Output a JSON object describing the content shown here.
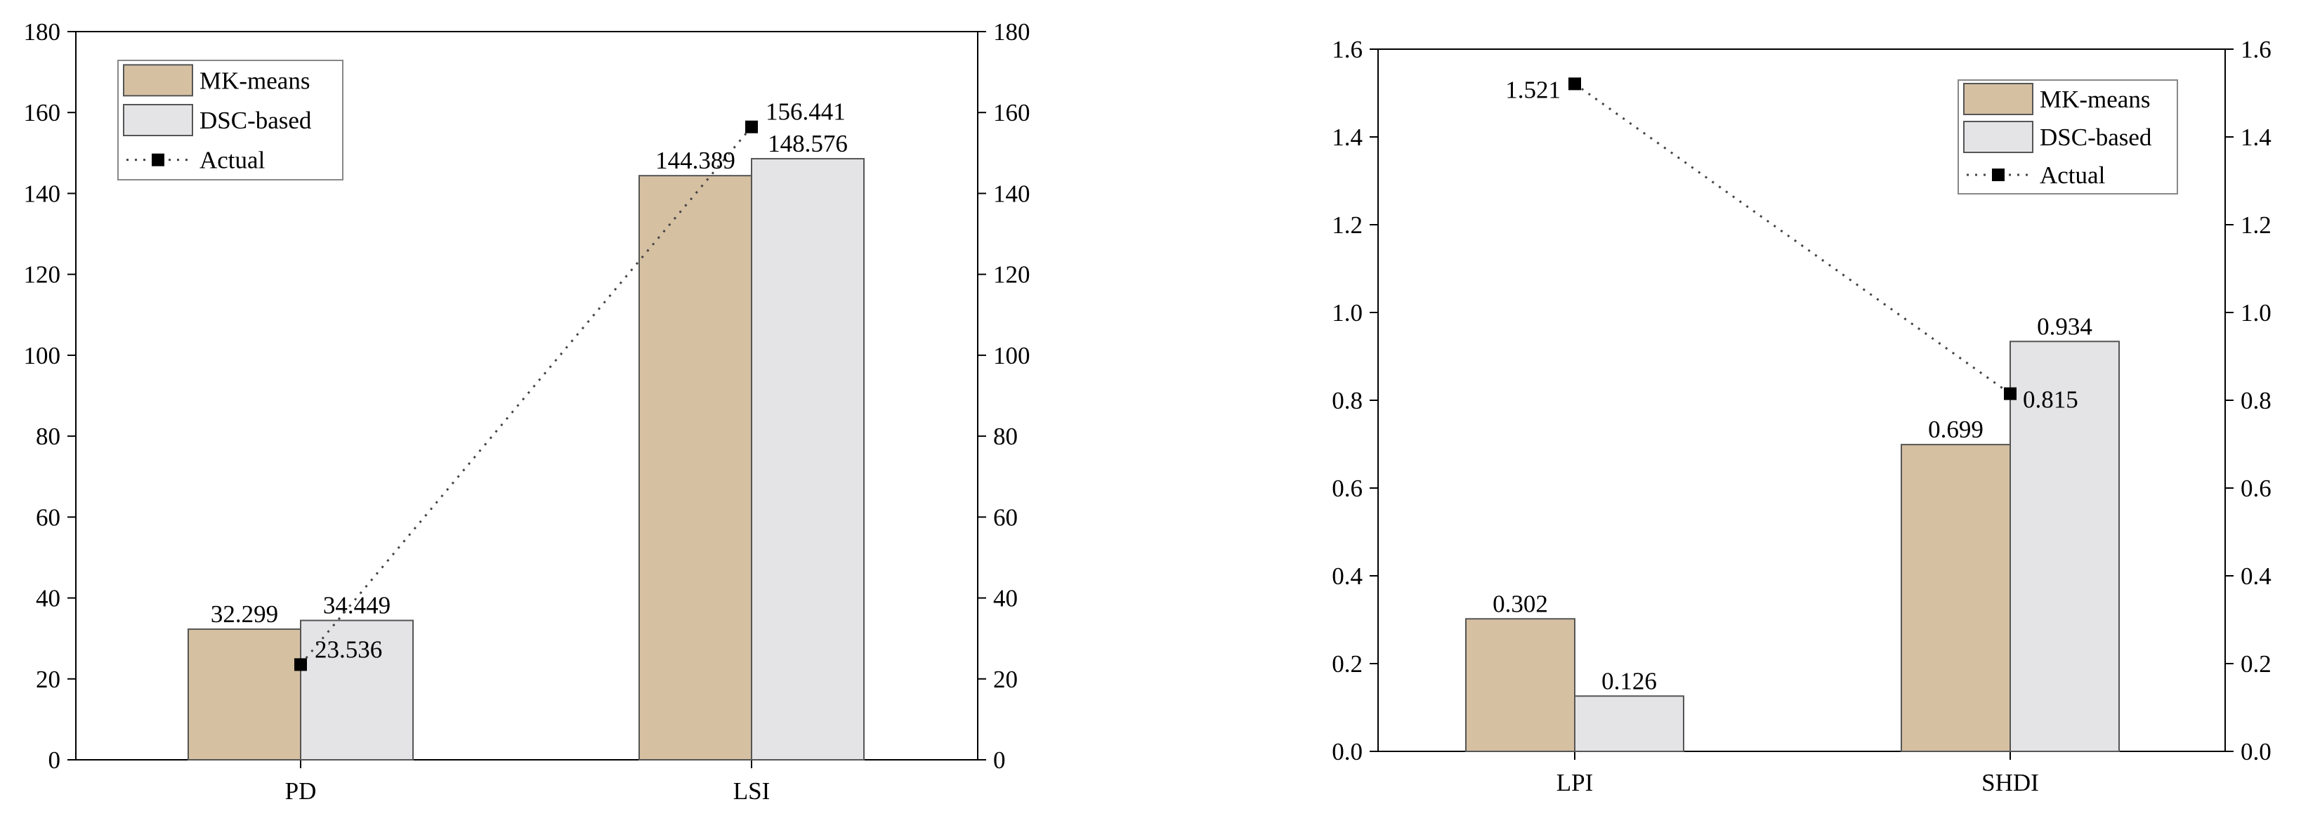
{
  "colors": {
    "mk_means": "#d6c0a2",
    "dsc_based": "#e4e3e5",
    "actual": "#000000",
    "axis": "#000000"
  },
  "chart_data": [
    {
      "type": "bar",
      "categories": [
        "PD",
        "LSI"
      ],
      "ylim": [
        0,
        180
      ],
      "yticks": [
        0,
        20,
        40,
        60,
        80,
        100,
        120,
        140,
        160,
        180
      ],
      "ytick_labels": [
        "0",
        "20",
        "40",
        "60",
        "80",
        "100",
        "120",
        "140",
        "160",
        "180"
      ],
      "y2ticks": [
        0,
        20,
        40,
        60,
        80,
        100,
        120,
        140,
        160,
        180
      ],
      "y2tick_labels": [
        "0",
        "20",
        "40",
        "60",
        "80",
        "100",
        "120",
        "140",
        "160",
        "180"
      ],
      "series": [
        {
          "name": "MK-means",
          "kind": "bar",
          "values": [
            32.299,
            144.389
          ],
          "labels": [
            "32.299",
            "144.389"
          ]
        },
        {
          "name": "DSC-based",
          "kind": "bar",
          "values": [
            34.449,
            148.576
          ],
          "labels": [
            "34.449",
            "148.576"
          ]
        },
        {
          "name": "Actual",
          "kind": "line",
          "values": [
            23.536,
            156.441
          ],
          "labels": [
            "23.536",
            "156.441"
          ]
        }
      ],
      "legend": {
        "position": "top-left",
        "entries": [
          "MK-means",
          "DSC-based",
          "Actual"
        ]
      },
      "grid": false
    },
    {
      "type": "bar",
      "categories": [
        "LPI",
        "SHDI"
      ],
      "ylim": [
        0,
        1.6
      ],
      "yticks": [
        0,
        0.2,
        0.4,
        0.6,
        0.8,
        1.0,
        1.2,
        1.4,
        1.6
      ],
      "ytick_labels": [
        "0.0",
        "0.2",
        "0.4",
        "0.6",
        "0.8",
        "1.0",
        "1.2",
        "1.4",
        "1.6"
      ],
      "y2ticks": [
        0,
        0.2,
        0.4,
        0.6,
        0.8,
        1.0,
        1.2,
        1.4,
        1.6
      ],
      "y2tick_labels": [
        "0.0",
        "0.2",
        "0.4",
        "0.6",
        "0.8",
        "1.0",
        "1.2",
        "1.4",
        "1.6"
      ],
      "series": [
        {
          "name": "MK-means",
          "kind": "bar",
          "values": [
            0.302,
            0.699
          ],
          "labels": [
            "0.302",
            "0.699"
          ]
        },
        {
          "name": "DSC-based",
          "kind": "bar",
          "values": [
            0.126,
            0.934
          ],
          "labels": [
            "0.126",
            "0.934"
          ]
        },
        {
          "name": "Actual",
          "kind": "line",
          "values": [
            1.521,
            0.815
          ],
          "labels": [
            "1.521",
            "0.815"
          ]
        }
      ],
      "legend": {
        "position": "top-right",
        "entries": [
          "MK-means",
          "DSC-based",
          "Actual"
        ]
      },
      "grid": false
    }
  ]
}
